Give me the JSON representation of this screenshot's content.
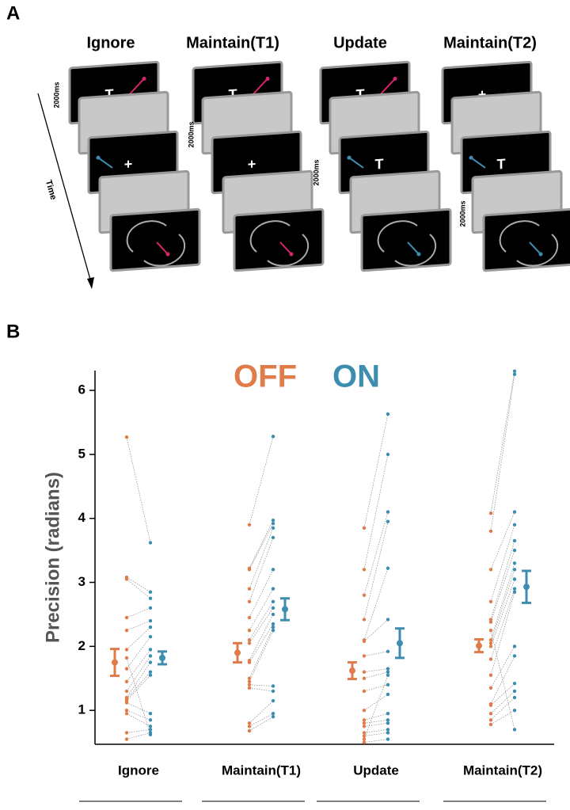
{
  "panel_a": {
    "label": "A",
    "time_label": "Time",
    "conditions": [
      {
        "title": "Ignore",
        "screens": [
          "T",
          "+"
        ],
        "duration": "2000ms"
      },
      {
        "title": "Maintain(T1)",
        "screens": [
          "T",
          "+"
        ],
        "duration": "2000ms"
      },
      {
        "title": "Update",
        "screens": [
          "T",
          "T"
        ],
        "duration": "2000ms"
      },
      {
        "title": "Maintain(T2)",
        "screens": [
          "+",
          "T"
        ],
        "duration": "2000ms"
      }
    ]
  },
  "chart_data": {
    "type": "paired-dot",
    "panel_label": "B",
    "y_label": "Precision (radians)",
    "categories": [
      "Ignore",
      "Maintain(T1)",
      "Update",
      "Maintain(T2)"
    ],
    "ylim": [
      0.47,
      6.31
    ],
    "yticks": [
      1,
      2,
      3,
      4,
      5,
      6
    ],
    "series": [
      {
        "name": "OFF",
        "color": "#e07b4a",
        "means": [
          1.75,
          1.9,
          1.62,
          2.01
        ],
        "errors": [
          0.21,
          0.15,
          0.13,
          0.1
        ],
        "points": [
          [
            5.27,
            3.08,
            3.05,
            2.45,
            2.25,
            1.95,
            1.65,
            1.45,
            1.3,
            1.2,
            1.18,
            1.15,
            1.12,
            1.0,
            0.95,
            0.65,
            0.55,
            1.82
          ],
          [
            3.9,
            3.22,
            3.2,
            2.9,
            2.7,
            2.45,
            2.25,
            2.1,
            1.78,
            1.75,
            1.5,
            1.45,
            1.4,
            1.35,
            0.8,
            0.75,
            0.68,
            2.05
          ],
          [
            3.85,
            3.2,
            2.8,
            2.42,
            2.1,
            2.08,
            1.85,
            1.6,
            1.5,
            1.3,
            1.0,
            0.85,
            0.8,
            0.75,
            0.65,
            0.6,
            0.5,
            0.55
          ],
          [
            4.08,
            3.8,
            3.2,
            2.7,
            2.42,
            2.38,
            2.1,
            2.05,
            2.0,
            1.8,
            1.55,
            1.35,
            1.1,
            1.08,
            0.95,
            0.85,
            0.78,
            2.25
          ]
        ]
      },
      {
        "name": "ON",
        "color": "#3d8db0",
        "means": [
          1.82,
          2.58,
          2.05,
          2.93
        ],
        "errors": [
          0.1,
          0.17,
          0.23,
          0.25
        ],
        "points": [
          [
            3.62,
            2.85,
            2.75,
            2.6,
            2.4,
            2.3,
            2.15,
            1.95,
            1.85,
            1.75,
            1.6,
            1.55,
            0.95,
            0.85,
            0.75,
            0.7,
            0.65,
            0.62
          ],
          [
            5.28,
            3.97,
            3.92,
            3.85,
            3.7,
            3.2,
            2.9,
            2.7,
            2.5,
            2.35,
            2.3,
            2.25,
            1.38,
            1.3,
            1.15,
            0.95,
            0.9,
            2.6
          ],
          [
            5.63,
            5.0,
            4.1,
            3.95,
            3.22,
            2.42,
            1.92,
            1.65,
            1.6,
            1.4,
            1.25,
            0.95,
            0.85,
            0.8,
            0.7,
            0.65,
            0.55,
            1.55
          ],
          [
            6.3,
            6.25,
            4.1,
            3.9,
            3.65,
            3.5,
            3.3,
            3.2,
            3.05,
            2.9,
            2.85,
            2.0,
            1.85,
            1.42,
            1.3,
            1.2,
            1.0,
            0.7
          ]
        ]
      }
    ]
  }
}
